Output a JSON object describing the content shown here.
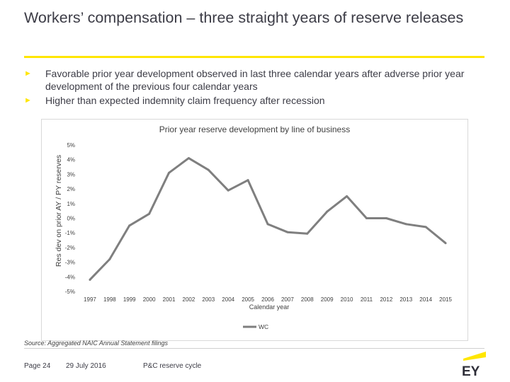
{
  "slide": {
    "title": "Workers’ compensation – three straight years of reserve releases",
    "bullets": [
      "Favorable prior year development observed in last three calendar years after adverse prior year development of the previous four calendar years",
      "Higher than expected indemnity claim frequency after recession"
    ],
    "bullet_marker": "►",
    "source": "Source: Aggregated NAIC Annual Statement filings",
    "footer": {
      "page": "Page 24",
      "date": "29 July 2016",
      "section": "P&C reserve cycle"
    },
    "logo_text": "EY"
  },
  "colors": {
    "accent": "#ffe600",
    "line": "#7f7f7f",
    "text": "#3c3c46"
  },
  "chart_data": {
    "type": "line",
    "title": "Prior year reserve development by line of business",
    "xlabel": "Calendar year",
    "ylabel": "Res dev on prior AY / PY reserves",
    "categories": [
      "1997",
      "1998",
      "1999",
      "2000",
      "2001",
      "2002",
      "2003",
      "2004",
      "2005",
      "2006",
      "2007",
      "2008",
      "2009",
      "2010",
      "2011",
      "2012",
      "2013",
      "2014",
      "2015"
    ],
    "y_ticks": [
      "5%",
      "4%",
      "3%",
      "2%",
      "1%",
      "0%",
      "-1%",
      "-2%",
      "-3%",
      "-4%",
      "-5%"
    ],
    "ylim": [
      -5,
      5
    ],
    "series": [
      {
        "name": "WC",
        "values": [
          -4.2,
          -2.8,
          -0.5,
          0.3,
          3.1,
          4.1,
          3.3,
          1.9,
          2.6,
          -0.4,
          -0.95,
          -1.05,
          0.45,
          1.5,
          0.0,
          0.0,
          -0.4,
          -0.6,
          -1.7
        ]
      }
    ],
    "legend": "bottom-center",
    "grid": false
  }
}
